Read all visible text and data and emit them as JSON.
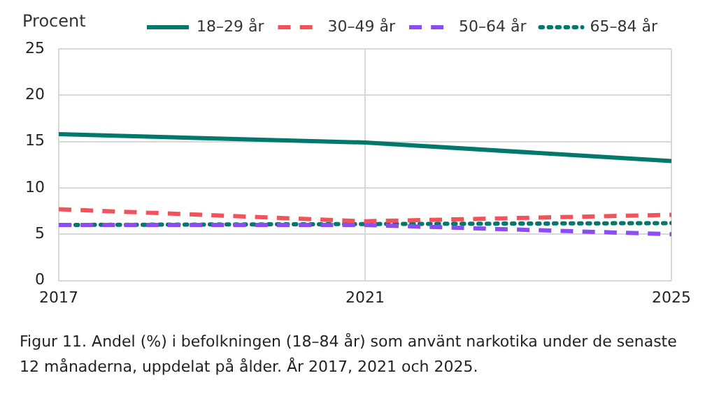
{
  "chart_data": {
    "type": "line",
    "ylabel": "Procent",
    "x": [
      2017,
      2021,
      2025
    ],
    "xlim": [
      2017,
      2025
    ],
    "xticks": [
      2017,
      2021,
      2025
    ],
    "ylim": [
      0,
      25
    ],
    "yticks": [
      0,
      5,
      10,
      15,
      20,
      25
    ],
    "grid": true,
    "legend": "top",
    "series": [
      {
        "name": "18–29 år",
        "color": "#00796d",
        "line_style": "solid",
        "values": [
          15.8,
          14.9,
          12.9
        ]
      },
      {
        "name": "30–49 år",
        "color": "#f2535b",
        "line_style": "dashed",
        "values": [
          7.7,
          6.4,
          7.1
        ]
      },
      {
        "name": "50–64 år",
        "color": "#8c4cf2",
        "line_style": "dashed",
        "values": [
          6.0,
          6.0,
          5.0
        ]
      },
      {
        "name": "65–84 år",
        "color": "#00796d",
        "line_style": "dotted",
        "values": [
          6.0,
          6.1,
          6.2
        ]
      }
    ],
    "annotations": [
      "Figur 11. Andel (%) i befolkningen (18–84 år) som använt narkotika under de senaste 12 månaderna, uppdelat på ålder. År 2017, 2021 och 2025."
    ]
  }
}
